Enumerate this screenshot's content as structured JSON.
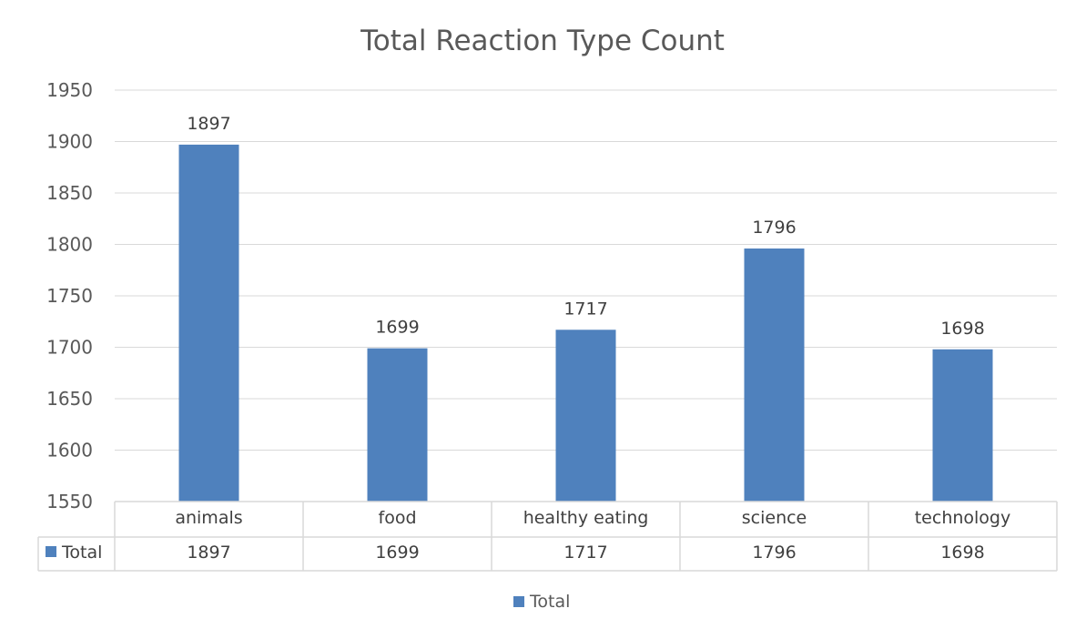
{
  "chart_data": {
    "type": "bar",
    "title": "Total Reaction Type Count",
    "categories": [
      "animals",
      "food",
      "healthy eating",
      "science",
      "technology"
    ],
    "series": [
      {
        "name": "Total",
        "values": [
          1897,
          1699,
          1717,
          1796,
          1698
        ]
      }
    ],
    "ylim": [
      1550,
      1950
    ],
    "yticks": [
      1550,
      1600,
      1650,
      1700,
      1750,
      1800,
      1850,
      1900,
      1950
    ],
    "gridlines": true,
    "data_labels": true,
    "data_table": true,
    "legend": {
      "position": "bottom",
      "entries": [
        "Total"
      ]
    },
    "colors": {
      "bar": "#4f81bd",
      "grid": "#d9d9d9",
      "text": "#595959",
      "table_border": "#d9d9d9"
    }
  }
}
